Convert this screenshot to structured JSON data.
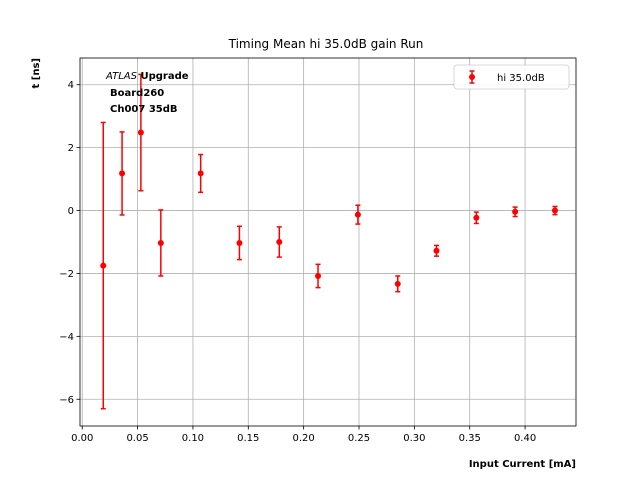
{
  "chart_data": {
    "type": "scatter",
    "title": "Timing Mean hi 35.0dB gain Run",
    "xlabel": "Input Current [mA]",
    "ylabel": "t [ns]",
    "xlim": [
      -0.002,
      0.446
    ],
    "ylim": [
      -6.85,
      4.85
    ],
    "xticks": [
      0.0,
      0.05,
      0.1,
      0.15,
      0.2,
      0.25,
      0.3,
      0.35,
      0.4
    ],
    "xtick_labels": [
      "0.00",
      "0.05",
      "0.10",
      "0.15",
      "0.20",
      "0.25",
      "0.30",
      "0.35",
      "0.40"
    ],
    "yticks": [
      -6,
      -4,
      -2,
      0,
      2,
      4
    ],
    "ytick_labels": [
      "−6",
      "−4",
      "−2",
      "0",
      "2",
      "4"
    ],
    "grid": true,
    "legend_position": "upper-right",
    "annotation": {
      "atlas": "ATLAS",
      "upgrade": " Upgrade",
      "board": "Board260",
      "channel": "Ch007 35dB"
    },
    "series": [
      {
        "name": "hi 35.0dB",
        "color": "#ff0000",
        "points": [
          {
            "x": 0.019,
            "y": -1.75,
            "err": 4.55
          },
          {
            "x": 0.036,
            "y": 1.18,
            "err": 1.32
          },
          {
            "x": 0.053,
            "y": 2.48,
            "err": 1.85
          },
          {
            "x": 0.071,
            "y": -1.03,
            "err": 1.05
          },
          {
            "x": 0.107,
            "y": 1.18,
            "err": 0.6
          },
          {
            "x": 0.142,
            "y": -1.03,
            "err": 0.53
          },
          {
            "x": 0.178,
            "y": -1.0,
            "err": 0.48
          },
          {
            "x": 0.213,
            "y": -2.08,
            "err": 0.37
          },
          {
            "x": 0.249,
            "y": -0.13,
            "err": 0.3
          },
          {
            "x": 0.285,
            "y": -2.33,
            "err": 0.25
          },
          {
            "x": 0.32,
            "y": -1.28,
            "err": 0.17
          },
          {
            "x": 0.356,
            "y": -0.23,
            "err": 0.18
          },
          {
            "x": 0.391,
            "y": -0.04,
            "err": 0.15
          },
          {
            "x": 0.427,
            "y": 0.0,
            "err": 0.13
          }
        ]
      }
    ]
  }
}
